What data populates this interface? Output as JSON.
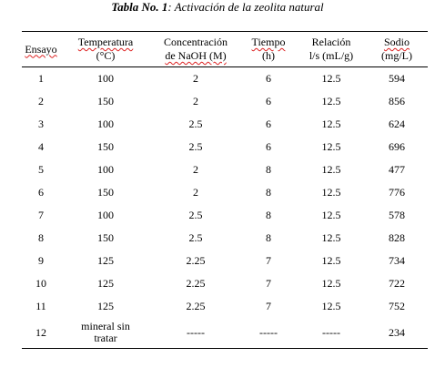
{
  "caption": {
    "lead": "Tabla No. 1",
    "rest": ": Activación de la zeolita natural"
  },
  "headers": [
    {
      "line1": "Ensayo",
      "line2": ""
    },
    {
      "line1": "Temperatura",
      "line2": "(°C)"
    },
    {
      "line1": "Concentración",
      "line2": "de NaOH (M)"
    },
    {
      "line1": "Tiempo",
      "line2": "(h)"
    },
    {
      "line1": "Relación",
      "line2": "l/s (mL/g)"
    },
    {
      "line1": "Sodio",
      "line2": "(mg/L)"
    }
  ],
  "rows": [
    [
      "1",
      "100",
      "2",
      "6",
      "12.5",
      "594"
    ],
    [
      "2",
      "150",
      "2",
      "6",
      "12.5",
      "856"
    ],
    [
      "3",
      "100",
      "2.5",
      "6",
      "12.5",
      "624"
    ],
    [
      "4",
      "150",
      "2.5",
      "6",
      "12.5",
      "696"
    ],
    [
      "5",
      "100",
      "2",
      "8",
      "12.5",
      "477"
    ],
    [
      "6",
      "150",
      "2",
      "8",
      "12.5",
      "776"
    ],
    [
      "7",
      "100",
      "2.5",
      "8",
      "12.5",
      "578"
    ],
    [
      "8",
      "150",
      "2.5",
      "8",
      "12.5",
      "828"
    ],
    [
      "9",
      "125",
      "2.25",
      "7",
      "12.5",
      "734"
    ],
    [
      "10",
      "125",
      "2.25",
      "7",
      "12.5",
      "722"
    ],
    [
      "11",
      "125",
      "2.25",
      "7",
      "12.5",
      "752"
    ],
    [
      "12",
      "mineral sin tratar",
      "-----",
      "-----",
      "-----",
      "234"
    ]
  ]
}
